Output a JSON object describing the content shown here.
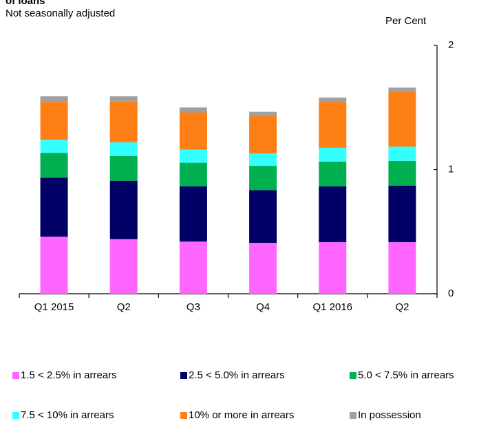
{
  "chart_data": {
    "type": "stacked_bar",
    "title": "of loans",
    "subtitle": "Not seasonally adjusted",
    "y_axis_label": "Per Cent",
    "categories": [
      "Q1 2015",
      "Q2",
      "Q3",
      "Q4",
      "Q1 2016",
      "Q2"
    ],
    "ylim": [
      0,
      2
    ],
    "yticks": [
      0,
      1,
      2
    ],
    "series": [
      {
        "name": "1.5 < 2.5% in arrears",
        "color": "#ff66ff",
        "values": [
          0.46,
          0.44,
          0.42,
          0.41,
          0.415,
          0.415
        ]
      },
      {
        "name": "2.5 < 5.0% in arrears",
        "color": "#000066",
        "values": [
          0.475,
          0.47,
          0.445,
          0.425,
          0.45,
          0.455
        ]
      },
      {
        "name": "5.0 < 7.5% in arrears",
        "color": "#00b050",
        "values": [
          0.2,
          0.2,
          0.19,
          0.195,
          0.2,
          0.2
        ]
      },
      {
        "name": "7.5 < 10% in arrears",
        "color": "#33ffff",
        "values": [
          0.105,
          0.11,
          0.105,
          0.1,
          0.11,
          0.115
        ]
      },
      {
        "name": "10% or more in arrears",
        "color": "#ff7f17",
        "values": [
          0.305,
          0.33,
          0.3,
          0.3,
          0.37,
          0.44
        ]
      },
      {
        "name": "In possession",
        "color": "#a0a0a0",
        "values": [
          0.045,
          0.04,
          0.04,
          0.035,
          0.035,
          0.035
        ]
      }
    ]
  }
}
